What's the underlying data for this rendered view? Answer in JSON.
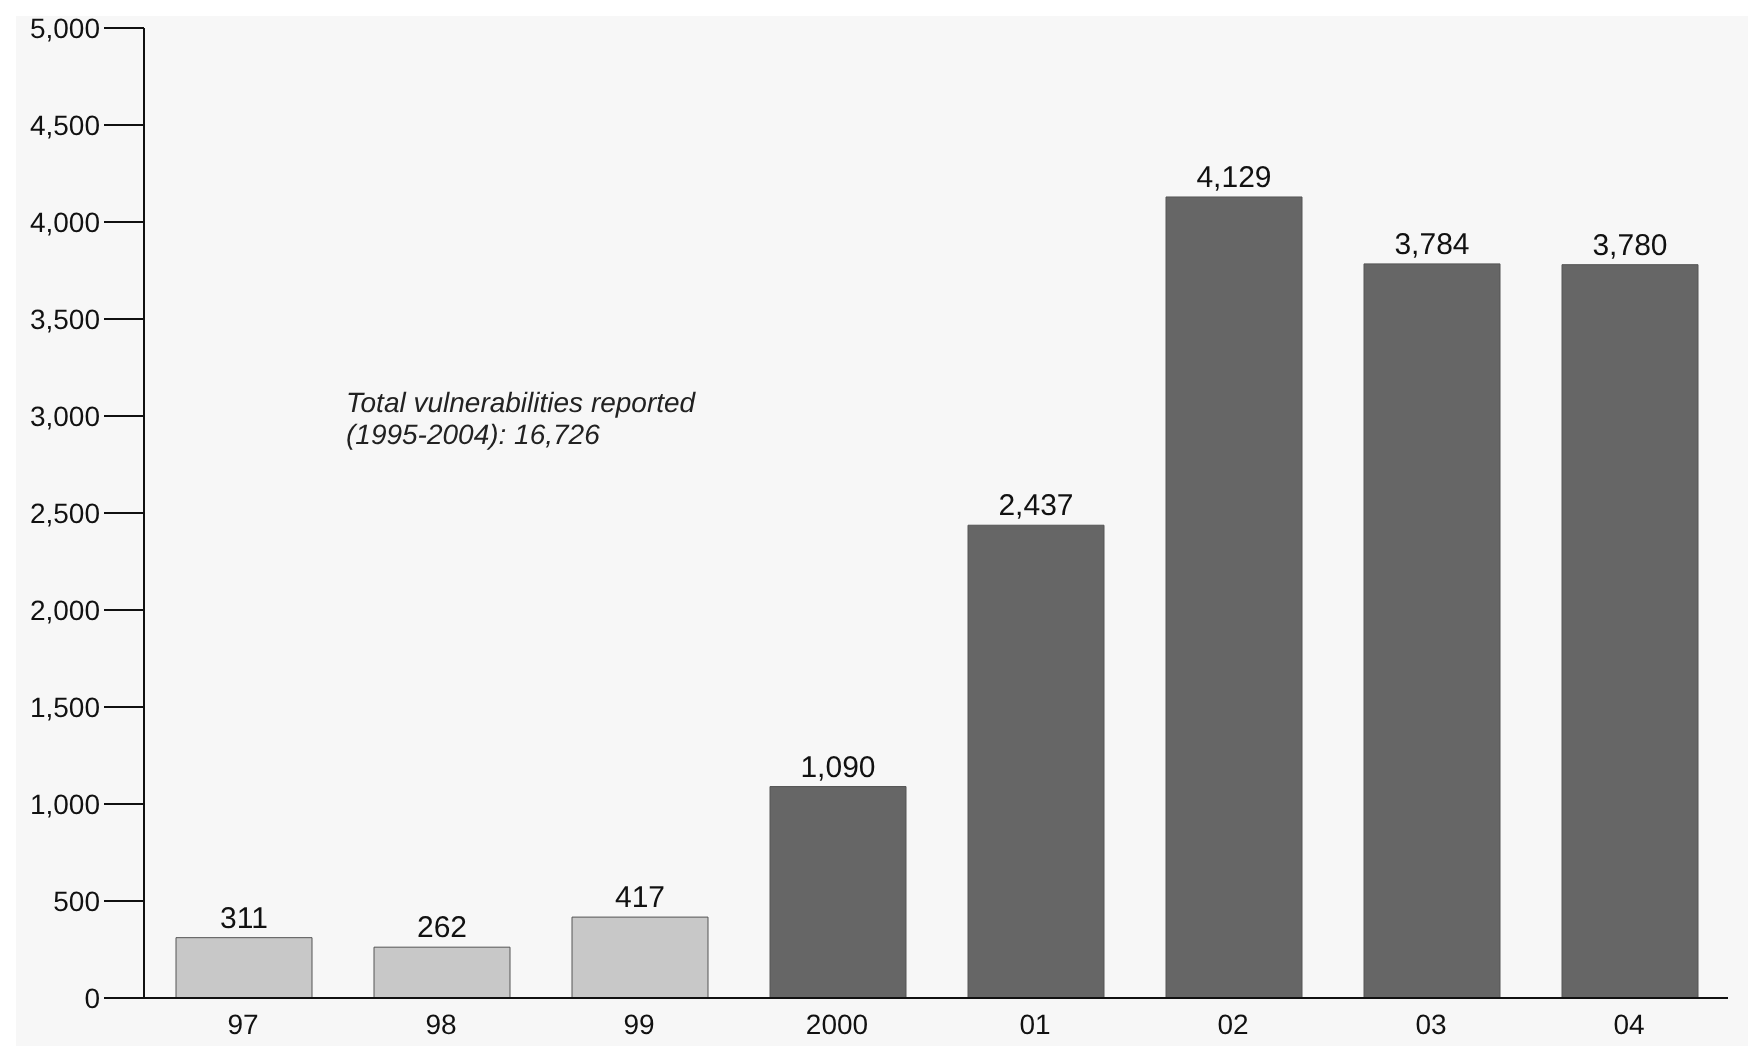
{
  "chart_data": {
    "type": "bar",
    "categories": [
      "97",
      "98",
      "99",
      "2000",
      "01",
      "02",
      "03",
      "04"
    ],
    "values": [
      311,
      262,
      417,
      1090,
      2437,
      4129,
      3784,
      3780
    ],
    "value_labels": [
      "311",
      "262",
      "417",
      "1,090",
      "2,437",
      "4,129",
      "3,784",
      "3,780"
    ],
    "colors": [
      "#c8c8c8",
      "#c8c8c8",
      "#c8c8c8",
      "#666666",
      "#666666",
      "#666666",
      "#666666",
      "#666666"
    ],
    "ylim": [
      0,
      5000
    ],
    "yticks": [
      0,
      500,
      {
        "value": 1000,
        "label": "1,000"
      },
      {
        "value": 1500,
        "label": "1,500"
      },
      {
        "value": 2000,
        "label": "2,000"
      },
      {
        "value": 2500,
        "label": "2,500"
      },
      {
        "value": 3000,
        "label": "3,000"
      },
      {
        "value": 3500,
        "label": "3,500"
      },
      {
        "value": 4000,
        "label": "4,000"
      },
      {
        "value": 4500,
        "label": "4,500"
      },
      {
        "value": 5000,
        "label": "5,000"
      }
    ],
    "annotations": [
      "Total vulnerabilities reported (1995-2004): 16,726"
    ]
  }
}
